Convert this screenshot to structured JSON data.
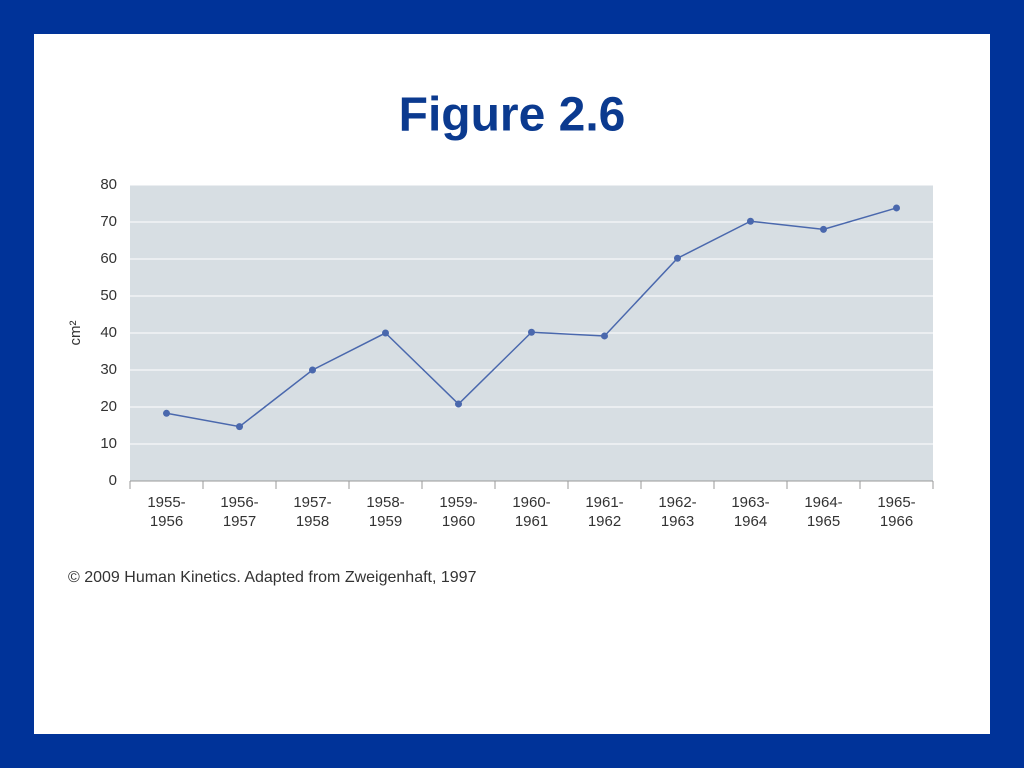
{
  "chart_data": {
    "type": "line",
    "title": "Figure 2.6",
    "y_label": "cm²",
    "categories": [
      "1955-1956",
      "1956-1957",
      "1957-1958",
      "1958-1959",
      "1959-1960",
      "1960-1961",
      "1961-1962",
      "1962-1963",
      "1963-1964",
      "1964-1965",
      "1965-1966"
    ],
    "values": [
      18.3,
      14.7,
      30,
      40,
      20.8,
      40.2,
      39.2,
      60.2,
      70.2,
      68,
      73.8
    ],
    "color": "#4a68ad",
    "ylim": [
      0,
      80
    ],
    "yticks": [
      0,
      10,
      20,
      30,
      40,
      50,
      60,
      70,
      80
    ],
    "grid": true,
    "source": "© 2009 Human Kinetics. Adapted from Zweigenhaft, 1997"
  }
}
